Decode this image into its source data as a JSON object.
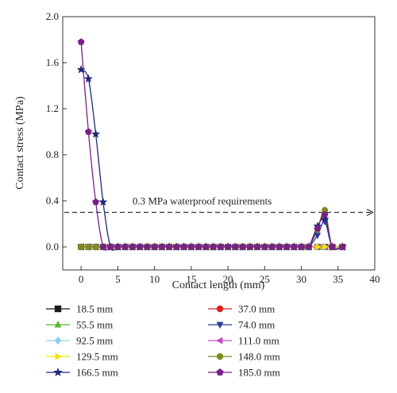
{
  "chart_data": {
    "type": "line",
    "xlabel": "Contact length (mm)",
    "ylabel": "Contact stress (MPa)",
    "xlim": [
      -2.5,
      40
    ],
    "ylim": [
      -0.2,
      2.0
    ],
    "xticks": [
      0,
      5,
      10,
      15,
      20,
      25,
      30,
      35,
      40
    ],
    "yticks": [
      0.0,
      0.4,
      0.8,
      1.2,
      1.6,
      2.0
    ],
    "xtick_labels": [
      "0",
      "5",
      "10",
      "15",
      "20",
      "25",
      "30",
      "35",
      "40"
    ],
    "ytick_labels": [
      "0.0",
      "0.4",
      "0.8",
      "1.2",
      "1.6",
      "2.0"
    ],
    "legend_placement": "below",
    "annotation": {
      "text": "0.3 MPa waterproof requirements",
      "y": 0.3
    },
    "series": [
      {
        "name": "18.5 mm",
        "color": "#1a1a1a",
        "marker": "square",
        "x": [
          0,
          1,
          2,
          3,
          4,
          5,
          6,
          7,
          8,
          9,
          10,
          11,
          12,
          13,
          14,
          15,
          16,
          17,
          18,
          19,
          20,
          21,
          22,
          23,
          24,
          25,
          26,
          27,
          28,
          29,
          30,
          31,
          32.2,
          33.2,
          34.2,
          35.6
        ],
        "y": [
          0,
          0,
          0,
          0,
          0,
          0,
          0,
          0,
          0,
          0,
          0,
          0,
          0,
          0,
          0,
          0,
          0,
          0,
          0,
          0,
          0,
          0,
          0,
          0,
          0,
          0,
          0,
          0,
          0,
          0,
          0,
          0,
          0,
          0,
          0,
          0
        ]
      },
      {
        "name": "37.0 mm",
        "color": "#e02020",
        "marker": "circle",
        "x": [
          0,
          1,
          2,
          3,
          4,
          5,
          6,
          7,
          8,
          9,
          10,
          11,
          12,
          13,
          14,
          15,
          16,
          17,
          18,
          19,
          20,
          21,
          22,
          23,
          24,
          25,
          26,
          27,
          28,
          29,
          30,
          31,
          32.2,
          33.2,
          34.2,
          35.6
        ],
        "y": [
          0,
          0,
          0,
          0,
          0,
          0,
          0,
          0,
          0,
          0,
          0,
          0,
          0,
          0,
          0,
          0,
          0,
          0,
          0,
          0,
          0,
          0,
          0,
          0,
          0,
          0,
          0,
          0,
          0,
          0,
          0,
          0,
          0,
          0,
          0,
          0
        ]
      },
      {
        "name": "55.5 mm",
        "color": "#5cb82e",
        "marker": "triangle-up",
        "x": [
          0,
          1,
          2,
          3,
          4,
          5,
          6,
          7,
          8,
          9,
          10,
          11,
          12,
          13,
          14,
          15,
          16,
          17,
          18,
          19,
          20,
          21,
          22,
          23,
          24,
          25,
          26,
          27,
          28,
          29,
          30,
          31,
          32.2,
          33.2,
          34.2,
          35.6
        ],
        "y": [
          0,
          0,
          0,
          0,
          0,
          0,
          0,
          0,
          0,
          0,
          0,
          0,
          0,
          0,
          0,
          0,
          0,
          0,
          0,
          0,
          0,
          0,
          0,
          0,
          0,
          0,
          0,
          0,
          0,
          0,
          0,
          0,
          0,
          0,
          0,
          0
        ]
      },
      {
        "name": "74.0 mm",
        "color": "#2c3e9e",
        "marker": "triangle-down",
        "x": [
          0,
          1,
          2,
          3,
          4,
          5,
          6,
          7,
          8,
          9,
          10,
          11,
          12,
          13,
          14,
          15,
          16,
          17,
          18,
          19,
          20,
          21,
          22,
          23,
          24,
          25,
          26,
          27,
          28,
          29,
          30,
          31,
          32.2,
          33.2,
          34.2,
          35.6
        ],
        "y": [
          0,
          0,
          0,
          0,
          0,
          0,
          0,
          0,
          0,
          0,
          0,
          0,
          0,
          0,
          0,
          0,
          0,
          0,
          0,
          0,
          0,
          0,
          0,
          0,
          0,
          0,
          0,
          0,
          0,
          0,
          0,
          0,
          0.1,
          0.22,
          0,
          0
        ]
      },
      {
        "name": "92.5 mm",
        "color": "#8fd1ea",
        "marker": "diamond",
        "x": [
          0,
          1,
          2,
          3,
          4,
          5,
          6,
          7,
          8,
          9,
          10,
          11,
          12,
          13,
          14,
          15,
          16,
          17,
          18,
          19,
          20,
          21,
          22,
          23,
          24,
          25,
          26,
          27,
          28,
          29,
          30,
          31,
          32.2,
          33.2,
          34.2,
          35.6
        ],
        "y": [
          0,
          0,
          0,
          0,
          0,
          0,
          0,
          0,
          0,
          0,
          0,
          0,
          0,
          0,
          0,
          0,
          0,
          0,
          0,
          0,
          0,
          0,
          0,
          0,
          0,
          0,
          0,
          0,
          0,
          0,
          0,
          0,
          0,
          0,
          0,
          0
        ]
      },
      {
        "name": "111.0 mm",
        "color": "#c050c0",
        "marker": "triangle-left",
        "x": [
          0,
          1,
          2,
          3,
          4,
          5,
          6,
          7,
          8,
          9,
          10,
          11,
          12,
          13,
          14,
          15,
          16,
          17,
          18,
          19,
          20,
          21,
          22,
          23,
          24,
          25,
          26,
          27,
          28,
          29,
          30,
          31,
          32.2,
          33.2,
          34.2,
          35.6
        ],
        "y": [
          0,
          0,
          0,
          0,
          0,
          0,
          0,
          0,
          0,
          0,
          0,
          0,
          0,
          0,
          0,
          0,
          0,
          0,
          0,
          0,
          0,
          0,
          0,
          0,
          0,
          0,
          0,
          0,
          0,
          0,
          0,
          0,
          0,
          0,
          0,
          0
        ]
      },
      {
        "name": "129.5 mm",
        "color": "#f2e600",
        "marker": "triangle-right",
        "x": [
          0,
          1,
          2,
          3,
          4,
          5,
          6,
          7,
          8,
          9,
          10,
          11,
          12,
          13,
          14,
          15,
          16,
          17,
          18,
          19,
          20,
          21,
          22,
          23,
          24,
          25,
          26,
          27,
          28,
          29,
          30,
          31,
          32.2,
          33.2,
          34.2,
          35.6
        ],
        "y": [
          0,
          0,
          0,
          0,
          0,
          0,
          0,
          0,
          0,
          0,
          0,
          0,
          0,
          0,
          0,
          0,
          0,
          0,
          0,
          0,
          0,
          0,
          0,
          0,
          0,
          0,
          0,
          0,
          0,
          0,
          0,
          0,
          0,
          0,
          0,
          0
        ]
      },
      {
        "name": "148.0 mm",
        "color": "#7f8a1f",
        "marker": "circle",
        "x": [
          0,
          1,
          2,
          3,
          4,
          5,
          6,
          7,
          8,
          9,
          10,
          11,
          12,
          13,
          14,
          15,
          16,
          17,
          18,
          19,
          20,
          21,
          22,
          23,
          24,
          25,
          26,
          27,
          28,
          29,
          30,
          31,
          32.2,
          33.2,
          34.2,
          35.6
        ],
        "y": [
          0,
          0,
          0,
          0,
          0,
          0,
          0,
          0,
          0,
          0,
          0,
          0,
          0,
          0,
          0,
          0,
          0,
          0,
          0,
          0,
          0,
          0,
          0,
          0,
          0,
          0,
          0,
          0,
          0,
          0,
          0,
          0,
          0.15,
          0.32,
          0,
          0
        ]
      },
      {
        "name": "166.5 mm",
        "color": "#1e2a78",
        "marker": "star",
        "x": [
          0,
          1,
          2,
          3,
          4,
          5,
          6,
          7,
          8,
          9,
          10,
          11,
          12,
          13,
          14,
          15,
          16,
          17,
          18,
          19,
          20,
          21,
          22,
          23,
          24,
          25,
          26,
          27,
          28,
          29,
          30,
          31,
          32.2,
          33.2,
          34.2,
          35.6
        ],
        "y": [
          1.54,
          1.46,
          0.98,
          0.39,
          0,
          0,
          0,
          0,
          0,
          0,
          0,
          0,
          0,
          0,
          0,
          0,
          0,
          0,
          0,
          0,
          0,
          0,
          0,
          0,
          0,
          0,
          0,
          0,
          0,
          0,
          0,
          0,
          0.18,
          0.24,
          0,
          0
        ]
      },
      {
        "name": "185.0 mm",
        "color": "#7a1f8a",
        "marker": "pentagon",
        "x": [
          0,
          1,
          2,
          3,
          4,
          5,
          6,
          7,
          8,
          9,
          10,
          11,
          12,
          13,
          14,
          15,
          16,
          17,
          18,
          19,
          20,
          21,
          22,
          23,
          24,
          25,
          26,
          27,
          28,
          29,
          30,
          31,
          32.2,
          33.2,
          34.2,
          35.6
        ],
        "y": [
          1.78,
          1.0,
          0.39,
          0,
          0,
          0,
          0,
          0,
          0,
          0,
          0,
          0,
          0,
          0,
          0,
          0,
          0,
          0,
          0,
          0,
          0,
          0,
          0,
          0,
          0,
          0,
          0,
          0,
          0,
          0,
          0,
          0,
          0.16,
          0.28,
          0,
          0
        ]
      }
    ]
  }
}
